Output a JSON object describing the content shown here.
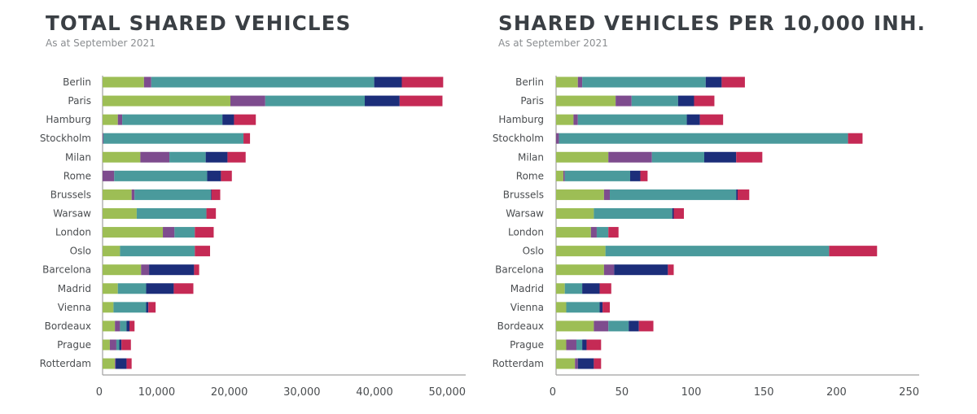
{
  "colors": {
    "green": "#9dbe55",
    "purple": "#7e4c8e",
    "teal": "#4a9a9c",
    "navy": "#1c2e7a",
    "red": "#c52a55",
    "axis": "#a0a0a0",
    "title": "#3a3f44"
  },
  "chart_data": [
    {
      "type": "bar",
      "orientation": "horizontal",
      "stacked": true,
      "title": "TOTAL SHARED VEHICLES",
      "subtitle": "As at September 2021",
      "xlabel": "",
      "ylabel": "",
      "xlim": [
        0,
        50000
      ],
      "xticks": [
        0,
        10000,
        20000,
        30000,
        40000,
        50000
      ],
      "xtick_labels": [
        "0",
        "10,000",
        "20,000",
        "30,000",
        "40,000",
        "50,000"
      ],
      "grid": false,
      "legend": "none",
      "categories": [
        "Berlin",
        "Paris",
        "Hamburg",
        "Stockholm",
        "Milan",
        "Rome",
        "Brussels",
        "Warsaw",
        "London",
        "Oslo",
        "Barcelona",
        "Madrid",
        "Vienna",
        "Bordeaux",
        "Prague",
        "Rotterdam"
      ],
      "series": [
        {
          "name": "green",
          "color": "#9dbe55",
          "values": [
            5700,
            17600,
            2100,
            0,
            5200,
            0,
            4000,
            4700,
            8300,
            2400,
            5300,
            2100,
            1500,
            1700,
            1000,
            1700
          ]
        },
        {
          "name": "purple",
          "color": "#7e4c8e",
          "values": [
            1000,
            4800,
            600,
            100,
            4000,
            1600,
            400,
            0,
            1600,
            0,
            1100,
            0,
            0,
            700,
            900,
            100
          ]
        },
        {
          "name": "teal",
          "color": "#4a9a9c",
          "values": [
            30700,
            13700,
            13800,
            19300,
            5000,
            12800,
            10500,
            9600,
            2800,
            10300,
            0,
            3900,
            4500,
            900,
            400,
            0
          ]
        },
        {
          "name": "navy",
          "color": "#1c2e7a",
          "values": [
            3800,
            4800,
            1600,
            0,
            3000,
            1900,
            100,
            0,
            0,
            0,
            6200,
            3800,
            300,
            400,
            300,
            1500
          ]
        },
        {
          "name": "red",
          "color": "#c52a55",
          "values": [
            5700,
            5900,
            3000,
            900,
            2500,
            1500,
            1200,
            1300,
            2600,
            2100,
            700,
            2700,
            1000,
            700,
            1300,
            700
          ]
        }
      ]
    },
    {
      "type": "bar",
      "orientation": "horizontal",
      "stacked": true,
      "title": "SHARED VEHICLES PER 10,000 INH.",
      "subtitle": "As at September 2021",
      "xlabel": "",
      "ylabel": "",
      "xlim": [
        0,
        250
      ],
      "xticks": [
        0,
        50,
        100,
        150,
        200,
        250
      ],
      "xtick_labels": [
        "0",
        "50",
        "100",
        "150",
        "200",
        "250"
      ],
      "grid": false,
      "legend": "none",
      "categories": [
        "Berlin",
        "Paris",
        "Hamburg",
        "Stockholm",
        "Milan",
        "Rome",
        "Brussels",
        "Warsaw",
        "London",
        "Oslo",
        "Barcelona",
        "Madrid",
        "Vienna",
        "Bordeaux",
        "Prague",
        "Rotterdam"
      ],
      "series": [
        {
          "name": "green",
          "color": "#9dbe55",
          "values": [
            15,
            41,
            12,
            0,
            36,
            5,
            33,
            26,
            24,
            34,
            33,
            6,
            7,
            26,
            7,
            13
          ]
        },
        {
          "name": "purple",
          "color": "#7e4c8e",
          "values": [
            3,
            11,
            3,
            2,
            30,
            1,
            4,
            0,
            4,
            0,
            7,
            0,
            0,
            10,
            7,
            2
          ]
        },
        {
          "name": "teal",
          "color": "#4a9a9c",
          "values": [
            85,
            32,
            75,
            199,
            36,
            45,
            87,
            54,
            8,
            154,
            0,
            12,
            23,
            14,
            4,
            0
          ]
        },
        {
          "name": "navy",
          "color": "#1c2e7a",
          "values": [
            11,
            11,
            9,
            0,
            22,
            7,
            1,
            1,
            0,
            0,
            37,
            12,
            2,
            7,
            3,
            11
          ]
        },
        {
          "name": "red",
          "color": "#c52a55",
          "values": [
            16,
            14,
            16,
            10,
            18,
            5,
            8,
            7,
            7,
            33,
            4,
            8,
            5,
            10,
            10,
            5
          ]
        }
      ]
    }
  ]
}
